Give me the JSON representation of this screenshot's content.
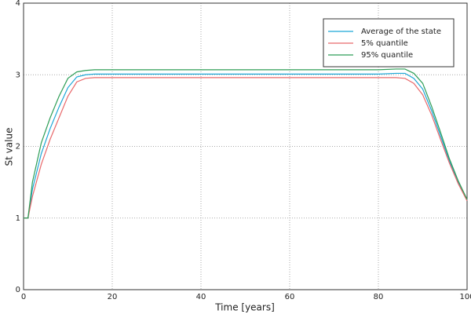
{
  "chart_data": {
    "type": "line",
    "xlabel": "Time [years]",
    "ylabel": "St value",
    "x": [
      0,
      1,
      2,
      4,
      6,
      8,
      10,
      12,
      14,
      16,
      20,
      30,
      40,
      50,
      60,
      70,
      80,
      84,
      86,
      88,
      90,
      92,
      94,
      96,
      98,
      100
    ],
    "series": [
      {
        "name": "Average of the state",
        "color": "#1ca6d6",
        "values": [
          1.0,
          1.0,
          1.4,
          1.9,
          2.25,
          2.55,
          2.82,
          2.97,
          3.0,
          3.01,
          3.01,
          3.01,
          3.01,
          3.01,
          3.01,
          3.01,
          3.01,
          3.02,
          3.02,
          2.95,
          2.8,
          2.5,
          2.15,
          1.8,
          1.5,
          1.25
        ]
      },
      {
        "name": "5% quantile",
        "color": "#e8696b",
        "values": [
          1.0,
          1.0,
          1.3,
          1.75,
          2.1,
          2.4,
          2.7,
          2.9,
          2.95,
          2.96,
          2.96,
          2.96,
          2.96,
          2.96,
          2.96,
          2.96,
          2.96,
          2.96,
          2.95,
          2.88,
          2.72,
          2.44,
          2.1,
          1.77,
          1.48,
          1.24
        ]
      },
      {
        "name": "95% quantile",
        "color": "#2e9e57",
        "values": [
          1.0,
          1.0,
          1.5,
          2.05,
          2.4,
          2.7,
          2.95,
          3.04,
          3.06,
          3.07,
          3.07,
          3.07,
          3.07,
          3.07,
          3.07,
          3.07,
          3.07,
          3.08,
          3.08,
          3.02,
          2.88,
          2.56,
          2.2,
          1.83,
          1.52,
          1.26
        ]
      }
    ],
    "xlim": [
      0,
      100
    ],
    "xticks": [
      0,
      20,
      40,
      60,
      80,
      100
    ],
    "ylim": [
      0,
      4
    ],
    "yticks": [
      0,
      1,
      2,
      3,
      4
    ],
    "grid": true,
    "legend": "upper right"
  }
}
